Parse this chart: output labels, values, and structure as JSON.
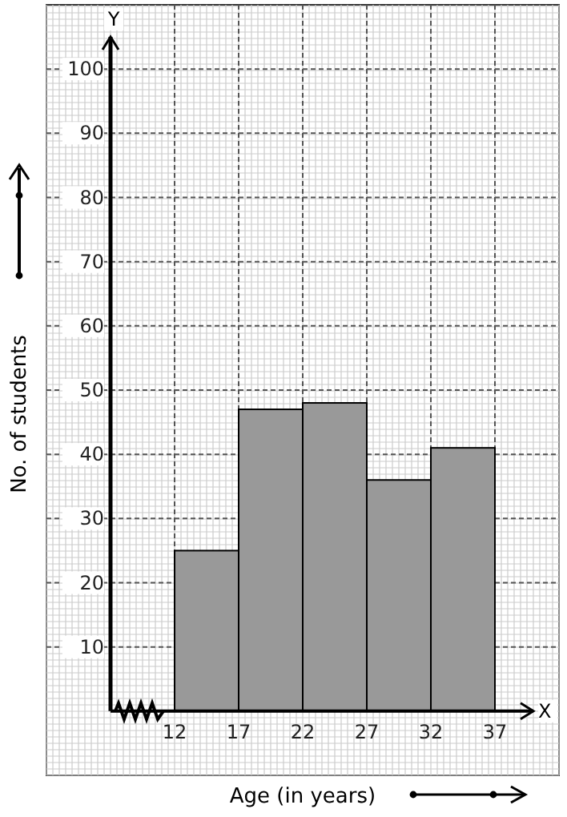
{
  "chart_data": {
    "type": "histogram",
    "xlabel": "Age (in years)",
    "ylabel": "No. of students",
    "bins": [
      12,
      17,
      22,
      27,
      32,
      37
    ],
    "values": [
      25,
      47,
      48,
      36,
      41
    ],
    "color": "#999999",
    "xlim": [
      2,
      42
    ],
    "ylim": [
      -10,
      110
    ],
    "xticks": [
      12,
      17,
      22,
      27,
      32,
      37
    ],
    "yticks": [
      10,
      20,
      30,
      40,
      50,
      60,
      70,
      80,
      90,
      100
    ],
    "grid": true,
    "annotations": [
      "Y",
      "X"
    ]
  }
}
